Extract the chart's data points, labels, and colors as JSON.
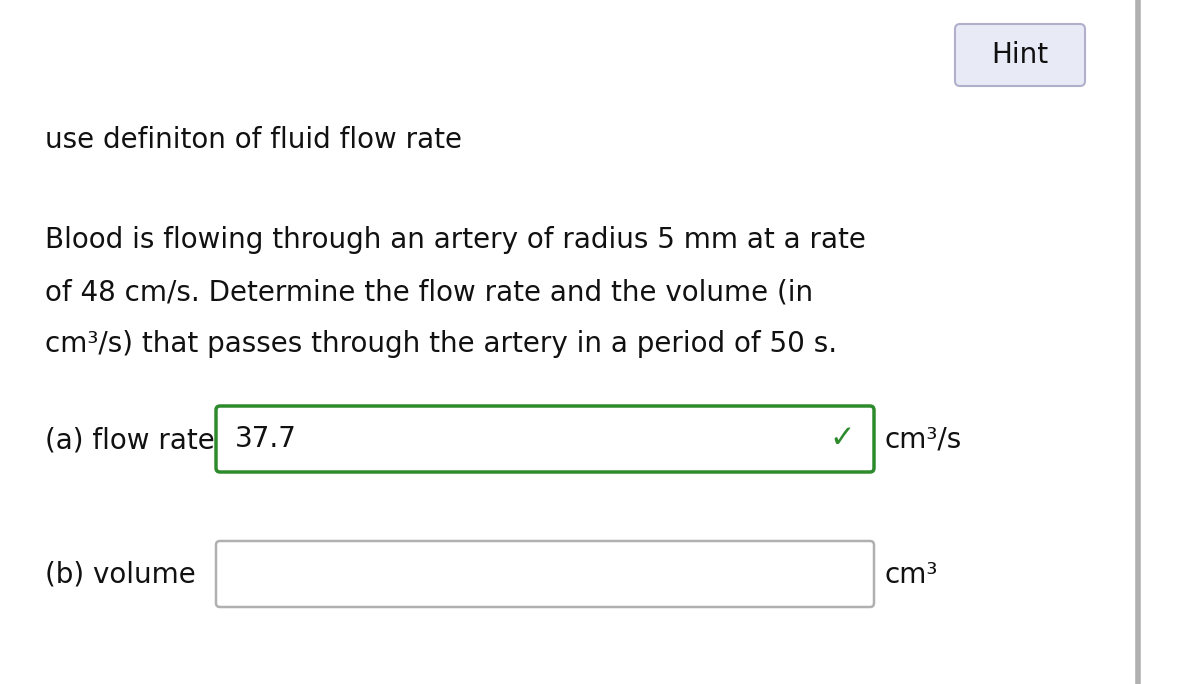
{
  "background_color": "#ffffff",
  "hint_text": "Hint",
  "hint_box_color": "#e8eaf6",
  "hint_box_border": "#b0b0cc",
  "subtitle_text": "use definiton of fluid flow rate",
  "problem_lines": [
    "Blood is flowing through an artery of radius 5 mm at a rate",
    "of 48 cm/s. Determine the flow rate and the volume (in",
    "cm³/s) that passes through the artery in a period of 50 s."
  ],
  "part_a_label": "(a) flow rate",
  "part_a_value": "37.7",
  "part_a_box_color": "#2d8a2d",
  "part_a_unit": "cm³/s",
  "check_color": "#2d8a2d",
  "part_b_label": "(b) volume",
  "part_b_box_color": "#b0b0b0",
  "part_b_unit": "cm³",
  "right_border_color": "#b0b0b0",
  "text_color": "#111111"
}
